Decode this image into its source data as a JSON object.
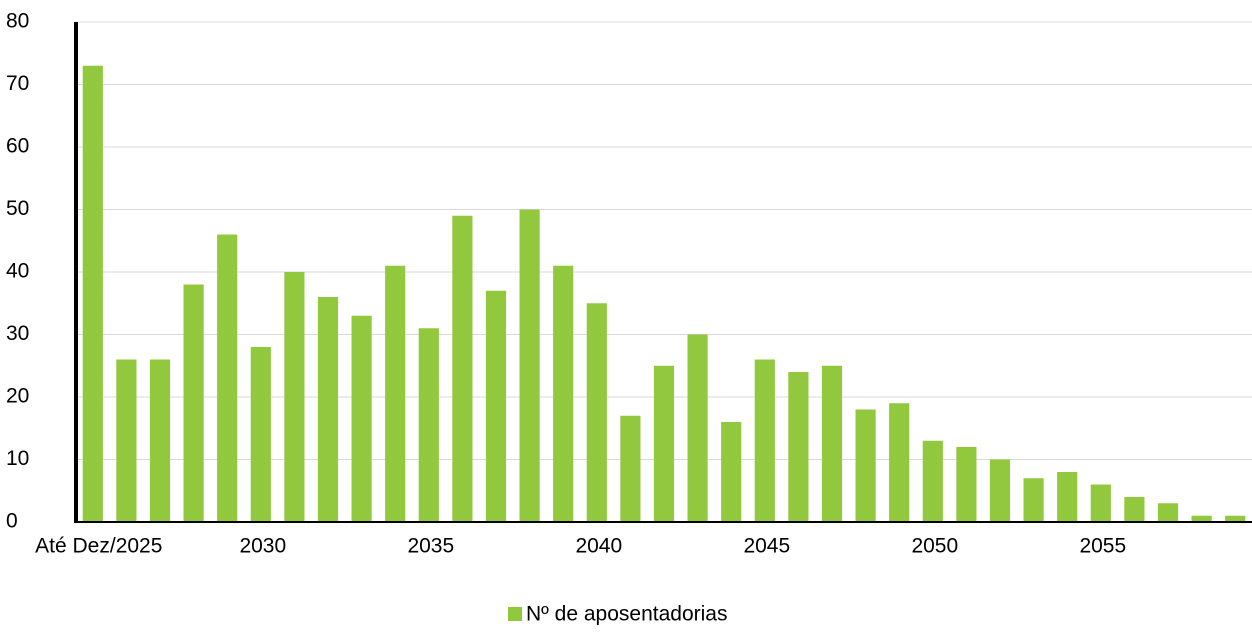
{
  "chart_data": {
    "type": "bar",
    "categories": [
      "Até Dez/2025",
      null,
      null,
      null,
      null,
      "2030",
      null,
      null,
      null,
      null,
      "2035",
      null,
      null,
      null,
      null,
      "2040",
      null,
      null,
      null,
      null,
      "2045",
      null,
      null,
      null,
      null,
      "2050",
      null,
      null,
      null,
      null,
      "2055",
      null,
      null,
      null,
      null
    ],
    "series": [
      {
        "name": "Nº de aposentadorias",
        "color": "#92c83e",
        "values": [
          73,
          26,
          26,
          38,
          46,
          28,
          40,
          36,
          33,
          41,
          31,
          49,
          37,
          50,
          41,
          35,
          17,
          25,
          30,
          16,
          26,
          24,
          25,
          18,
          19,
          13,
          12,
          10,
          7,
          8,
          6,
          4,
          3,
          1,
          1
        ]
      }
    ],
    "ylim": [
      0,
      80
    ],
    "yticks": [
      0,
      10,
      20,
      30,
      40,
      50,
      60,
      70,
      80
    ],
    "grid": true,
    "legend": "bottom"
  }
}
